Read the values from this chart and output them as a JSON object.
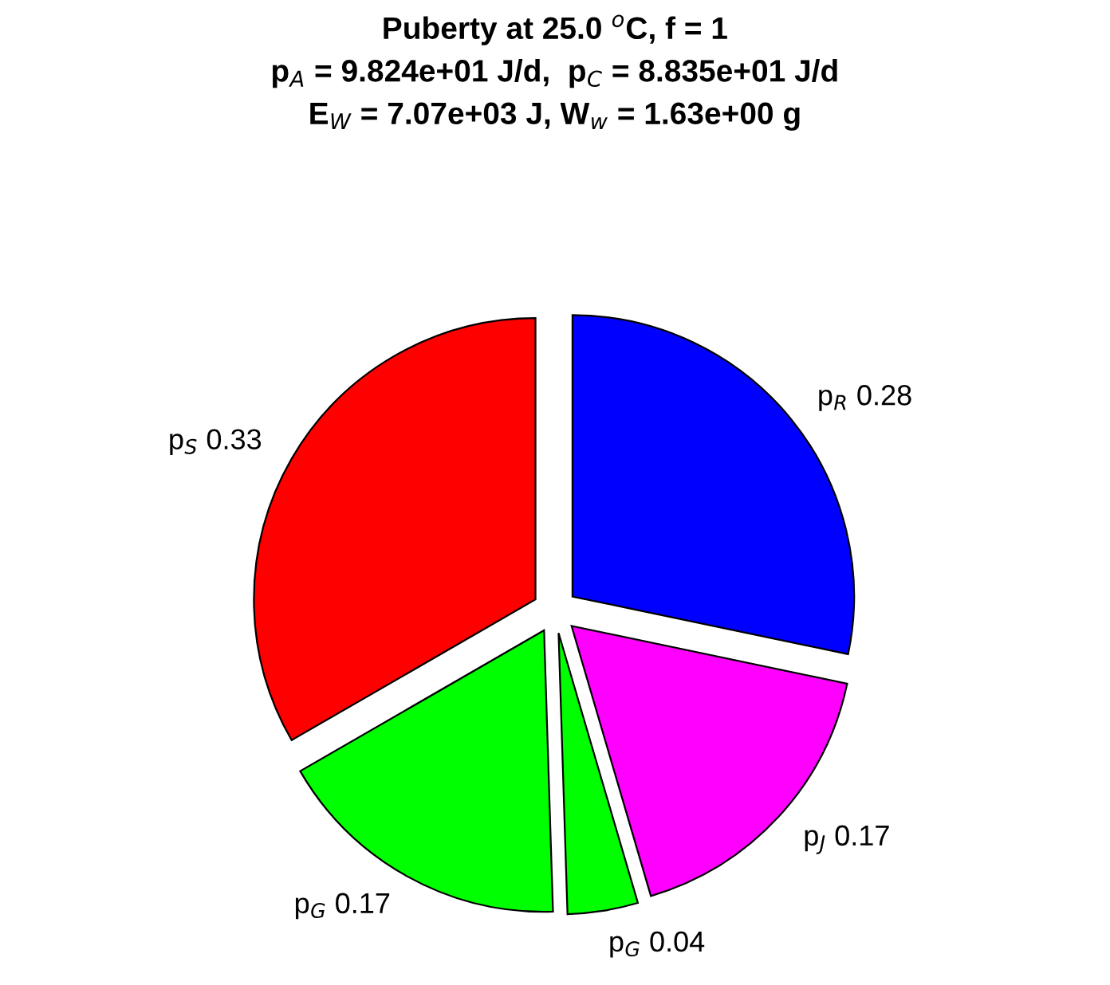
{
  "chart_data": {
    "type": "pie",
    "title": "Puberty at 25.0 $^{o}$C, f = 1\np$_{A}$ = 9.824e+01 J/d,  p$_{C}$ = 8.835e+01 J/d\nE$_{W}$ = 7.07e+03 J, W$_{w}$ = 1.63e+00 g",
    "categories": [
      "p$_{R}$",
      "p$_{J}$",
      "p$_{G}$",
      "p$_{G}$",
      "p$_{S}$"
    ],
    "values": [
      0.28,
      0.17,
      0.04,
      0.17,
      0.33
    ],
    "colors": [
      "#0000ff",
      "#ff00ff",
      "#00ff00",
      "#00ff00",
      "#ff0000"
    ],
    "data_labels": true
  }
}
